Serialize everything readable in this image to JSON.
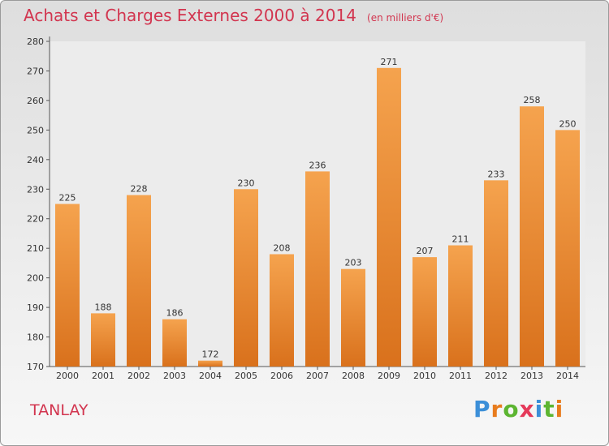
{
  "chart_data": {
    "type": "bar",
    "title": "Achats et Charges Externes 2000 à 2014",
    "subtitle": "(en milliers d'€)",
    "xlabel": "",
    "ylabel": "",
    "categories": [
      "2000",
      "2001",
      "2002",
      "2003",
      "2004",
      "2005",
      "2006",
      "2007",
      "2008",
      "2009",
      "2010",
      "2011",
      "2012",
      "2013",
      "2014"
    ],
    "values": [
      225,
      188,
      228,
      186,
      172,
      230,
      208,
      236,
      203,
      271,
      207,
      211,
      233,
      258,
      250
    ],
    "ylim": [
      170,
      280
    ],
    "yticks": [
      170,
      180,
      190,
      200,
      210,
      220,
      230,
      240,
      250,
      260,
      270,
      280
    ],
    "grid": false,
    "legend": "none",
    "bar_color_top": "#f5a34e",
    "bar_color_bottom": "#d9711c"
  },
  "footer": {
    "commune": "TANLAY",
    "logo_letters": [
      "P",
      "r",
      "o",
      "x",
      "i",
      "t",
      "i"
    ],
    "logo_colors": [
      "#3c8fd8",
      "#e87c1e",
      "#5cb531",
      "#e53a5a",
      "#3c8fd8",
      "#5cb531",
      "#e87c1e"
    ]
  }
}
